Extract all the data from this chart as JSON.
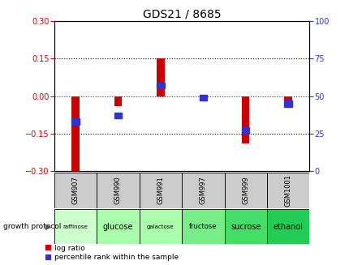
{
  "title": "GDS21 / 8685",
  "samples": [
    "GSM907",
    "GSM990",
    "GSM991",
    "GSM997",
    "GSM999",
    "GSM1001"
  ],
  "protocols": [
    "raffinose",
    "glucose",
    "galactose",
    "fructose",
    "sucrose",
    "ethanol"
  ],
  "log_ratios": [
    -0.305,
    -0.04,
    0.15,
    -0.02,
    -0.19,
    -0.045
  ],
  "percentile_ranks": [
    33,
    37,
    57,
    49,
    27,
    45
  ],
  "ylim_left": [
    -0.3,
    0.3
  ],
  "ylim_right": [
    0,
    100
  ],
  "bar_color": "#cc0000",
  "dot_color": "#3333cc",
  "zero_line_color": "#cc0000",
  "title_fontsize": 10,
  "left_tick_color": "#cc0000",
  "right_tick_color": "#3333cc",
  "protocol_colors": [
    "#ccffcc",
    "#aaffaa",
    "#aaffaa",
    "#77ee88",
    "#44dd66",
    "#22cc55"
  ],
  "sample_bg_color": "#cccccc",
  "legend_red_label": "log ratio",
  "legend_blue_label": "percentile rank within the sample",
  "bar_width": 0.18,
  "blue_bar_width": 0.18,
  "blue_bar_height": 0.025
}
